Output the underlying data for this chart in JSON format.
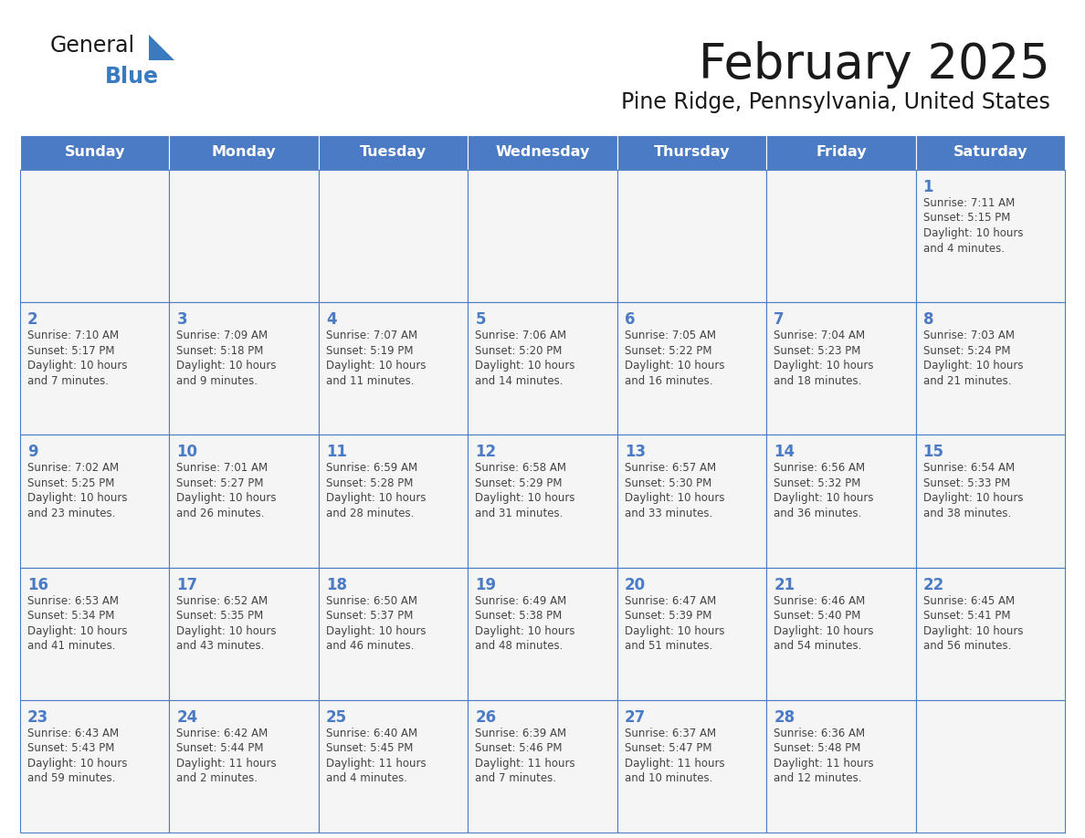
{
  "title": "February 2025",
  "subtitle": "Pine Ridge, Pennsylvania, United States",
  "days_of_week": [
    "Sunday",
    "Monday",
    "Tuesday",
    "Wednesday",
    "Thursday",
    "Friday",
    "Saturday"
  ],
  "header_bg_color": "#4A7BC4",
  "header_text_color": "#FFFFFF",
  "cell_bg_color": "#F5F5F5",
  "border_color": "#4A7BC4",
  "day_number_color": "#4A7BC4",
  "detail_text_color": "#444444",
  "title_color": "#1a1a1a",
  "subtitle_color": "#1a1a1a",
  "logo_general_color": "#1a1a1a",
  "logo_blue_color": "#3a7abf",
  "calendar_data": [
    [
      null,
      null,
      null,
      null,
      null,
      null,
      {
        "day": 1,
        "sunrise": "7:11 AM",
        "sunset": "5:15 PM",
        "daylight": "10 hours and 4 minutes."
      }
    ],
    [
      {
        "day": 2,
        "sunrise": "7:10 AM",
        "sunset": "5:17 PM",
        "daylight": "10 hours and 7 minutes."
      },
      {
        "day": 3,
        "sunrise": "7:09 AM",
        "sunset": "5:18 PM",
        "daylight": "10 hours and 9 minutes."
      },
      {
        "day": 4,
        "sunrise": "7:07 AM",
        "sunset": "5:19 PM",
        "daylight": "10 hours and 11 minutes."
      },
      {
        "day": 5,
        "sunrise": "7:06 AM",
        "sunset": "5:20 PM",
        "daylight": "10 hours and 14 minutes."
      },
      {
        "day": 6,
        "sunrise": "7:05 AM",
        "sunset": "5:22 PM",
        "daylight": "10 hours and 16 minutes."
      },
      {
        "day": 7,
        "sunrise": "7:04 AM",
        "sunset": "5:23 PM",
        "daylight": "10 hours and 18 minutes."
      },
      {
        "day": 8,
        "sunrise": "7:03 AM",
        "sunset": "5:24 PM",
        "daylight": "10 hours and 21 minutes."
      }
    ],
    [
      {
        "day": 9,
        "sunrise": "7:02 AM",
        "sunset": "5:25 PM",
        "daylight": "10 hours and 23 minutes."
      },
      {
        "day": 10,
        "sunrise": "7:01 AM",
        "sunset": "5:27 PM",
        "daylight": "10 hours and 26 minutes."
      },
      {
        "day": 11,
        "sunrise": "6:59 AM",
        "sunset": "5:28 PM",
        "daylight": "10 hours and 28 minutes."
      },
      {
        "day": 12,
        "sunrise": "6:58 AM",
        "sunset": "5:29 PM",
        "daylight": "10 hours and 31 minutes."
      },
      {
        "day": 13,
        "sunrise": "6:57 AM",
        "sunset": "5:30 PM",
        "daylight": "10 hours and 33 minutes."
      },
      {
        "day": 14,
        "sunrise": "6:56 AM",
        "sunset": "5:32 PM",
        "daylight": "10 hours and 36 minutes."
      },
      {
        "day": 15,
        "sunrise": "6:54 AM",
        "sunset": "5:33 PM",
        "daylight": "10 hours and 38 minutes."
      }
    ],
    [
      {
        "day": 16,
        "sunrise": "6:53 AM",
        "sunset": "5:34 PM",
        "daylight": "10 hours and 41 minutes."
      },
      {
        "day": 17,
        "sunrise": "6:52 AM",
        "sunset": "5:35 PM",
        "daylight": "10 hours and 43 minutes."
      },
      {
        "day": 18,
        "sunrise": "6:50 AM",
        "sunset": "5:37 PM",
        "daylight": "10 hours and 46 minutes."
      },
      {
        "day": 19,
        "sunrise": "6:49 AM",
        "sunset": "5:38 PM",
        "daylight": "10 hours and 48 minutes."
      },
      {
        "day": 20,
        "sunrise": "6:47 AM",
        "sunset": "5:39 PM",
        "daylight": "10 hours and 51 minutes."
      },
      {
        "day": 21,
        "sunrise": "6:46 AM",
        "sunset": "5:40 PM",
        "daylight": "10 hours and 54 minutes."
      },
      {
        "day": 22,
        "sunrise": "6:45 AM",
        "sunset": "5:41 PM",
        "daylight": "10 hours and 56 minutes."
      }
    ],
    [
      {
        "day": 23,
        "sunrise": "6:43 AM",
        "sunset": "5:43 PM",
        "daylight": "10 hours and 59 minutes."
      },
      {
        "day": 24,
        "sunrise": "6:42 AM",
        "sunset": "5:44 PM",
        "daylight": "11 hours and 2 minutes."
      },
      {
        "day": 25,
        "sunrise": "6:40 AM",
        "sunset": "5:45 PM",
        "daylight": "11 hours and 4 minutes."
      },
      {
        "day": 26,
        "sunrise": "6:39 AM",
        "sunset": "5:46 PM",
        "daylight": "11 hours and 7 minutes."
      },
      {
        "day": 27,
        "sunrise": "6:37 AM",
        "sunset": "5:47 PM",
        "daylight": "11 hours and 10 minutes."
      },
      {
        "day": 28,
        "sunrise": "6:36 AM",
        "sunset": "5:48 PM",
        "daylight": "11 hours and 12 minutes."
      },
      null
    ]
  ]
}
